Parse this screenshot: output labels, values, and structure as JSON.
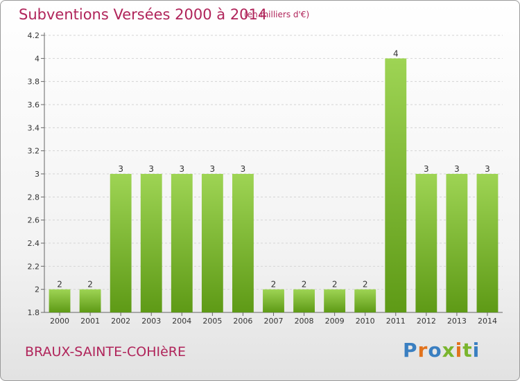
{
  "title": "Subventions Versées 2000 à 2014",
  "subtitle": "(en milliers d'€)",
  "commune": "BRAUX-SAINTE-COHIèRE",
  "logo": {
    "text": "Proxiti",
    "letter_colors": [
      "#3a7fc1",
      "#e2731d",
      "#3a7fc1",
      "#7ab52e",
      "#e2731d",
      "#7ab52e",
      "#3a7fc1"
    ]
  },
  "colors": {
    "title": "#b0245a",
    "bar_light": "#9ed454",
    "bar_dark": "#5e9a16",
    "grid": "#d4d4d4"
  },
  "chart_data": {
    "type": "bar",
    "categories": [
      "2000",
      "2001",
      "2002",
      "2003",
      "2004",
      "2005",
      "2006",
      "2007",
      "2008",
      "2009",
      "2010",
      "2011",
      "2012",
      "2013",
      "2014"
    ],
    "values": [
      2,
      2,
      3,
      3,
      3,
      3,
      3,
      2,
      2,
      2,
      2,
      4,
      3,
      3,
      3
    ],
    "value_labels": [
      "2",
      "2",
      "3",
      "3",
      "3",
      "3",
      "3",
      "2",
      "2",
      "2",
      "2",
      "4",
      "3",
      "3",
      "3"
    ],
    "y_ticks": [
      "1.8",
      "2",
      "2.2",
      "2.4",
      "2.6",
      "2.8",
      "3",
      "3.2",
      "3.4",
      "3.6",
      "3.8",
      "4",
      "4.2"
    ],
    "ylim": [
      1.8,
      4.2
    ],
    "grid": true,
    "xlabel": "",
    "ylabel": ""
  }
}
